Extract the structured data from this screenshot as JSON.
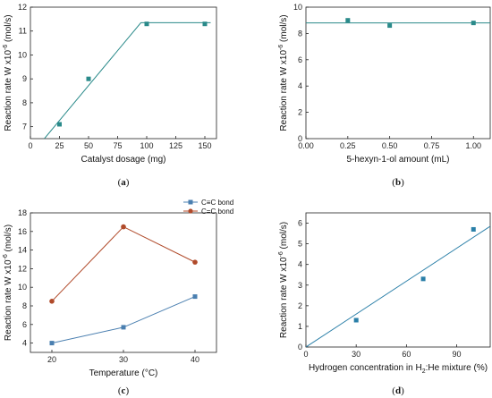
{
  "chart_data": [
    {
      "type": "scatter",
      "panel_label": "(a)",
      "xlabel": "Catalyst dosage (mg)",
      "ylabel": "Reaction rate W x10^-6 (mol/s)",
      "xlim": [
        0,
        160
      ],
      "ylim": [
        6.5,
        12
      ],
      "xticks": [
        0,
        25,
        50,
        75,
        100,
        125,
        150
      ],
      "yticks": [
        7,
        8,
        9,
        10,
        11,
        12
      ],
      "points": {
        "x": [
          25,
          50,
          100,
          150
        ],
        "y": [
          7.1,
          9.0,
          11.3,
          11.3
        ]
      },
      "fit_line": {
        "x": [
          12,
          95,
          155
        ],
        "y": [
          6.5,
          11.35,
          11.35
        ]
      },
      "color": "#2a8a8a",
      "grid": false
    },
    {
      "type": "scatter",
      "panel_label": "(b)",
      "xlabel": "5-hexyn-1-ol amount (mL)",
      "ylabel": "Reaction rate W x10^-6 (mol/s)",
      "xlim": [
        0,
        1.1
      ],
      "ylim": [
        0,
        10
      ],
      "xticks": [
        "0.00",
        "0.25",
        "0.50",
        "0.75",
        "1.00"
      ],
      "yticks": [
        0,
        2,
        4,
        6,
        8,
        10
      ],
      "points": {
        "x": [
          0.25,
          0.5,
          1.0
        ],
        "y": [
          9.0,
          8.6,
          8.8
        ]
      },
      "fit_line": {
        "x": [
          0,
          1.1
        ],
        "y": [
          8.8,
          8.8
        ]
      },
      "color": "#2a8a8a",
      "grid": false
    },
    {
      "type": "line",
      "panel_label": "(c)",
      "xlabel": "Temperature (°C)",
      "ylabel": "Reaction rate W x10^-6 (mol/s)",
      "xlim": [
        17,
        43
      ],
      "ylim": [
        3,
        18
      ],
      "xticks": [
        20,
        30,
        40
      ],
      "yticks": [
        4,
        6,
        8,
        10,
        12,
        14,
        16,
        18
      ],
      "series": [
        {
          "name": "C≡C bond",
          "x": [
            20,
            30,
            40
          ],
          "values": [
            4.0,
            5.7,
            9.0
          ],
          "color": "#4a7fb0"
        },
        {
          "name": "C=C bond",
          "x": [
            20,
            30,
            40
          ],
          "values": [
            8.5,
            16.5,
            12.7
          ],
          "color": "#b04a2a"
        }
      ],
      "legend": "top-left",
      "grid": false
    },
    {
      "type": "scatter",
      "panel_label": "(d)",
      "xlabel": "Hydrogen concentration in H2:He mixture (%)",
      "ylabel": "Reaction rate W x10^-6 (mol/s)",
      "xlim": [
        0,
        110
      ],
      "ylim": [
        0,
        6.5
      ],
      "xticks": [
        0,
        30,
        60,
        90
      ],
      "yticks": [
        0,
        1,
        2,
        3,
        4,
        5,
        6
      ],
      "points": {
        "x": [
          30,
          70,
          100
        ],
        "y": [
          1.3,
          3.3,
          5.7
        ]
      },
      "fit_line": {
        "x": [
          0,
          110
        ],
        "y": [
          0,
          5.85
        ]
      },
      "color": "#2a7fa8",
      "grid": false
    }
  ]
}
